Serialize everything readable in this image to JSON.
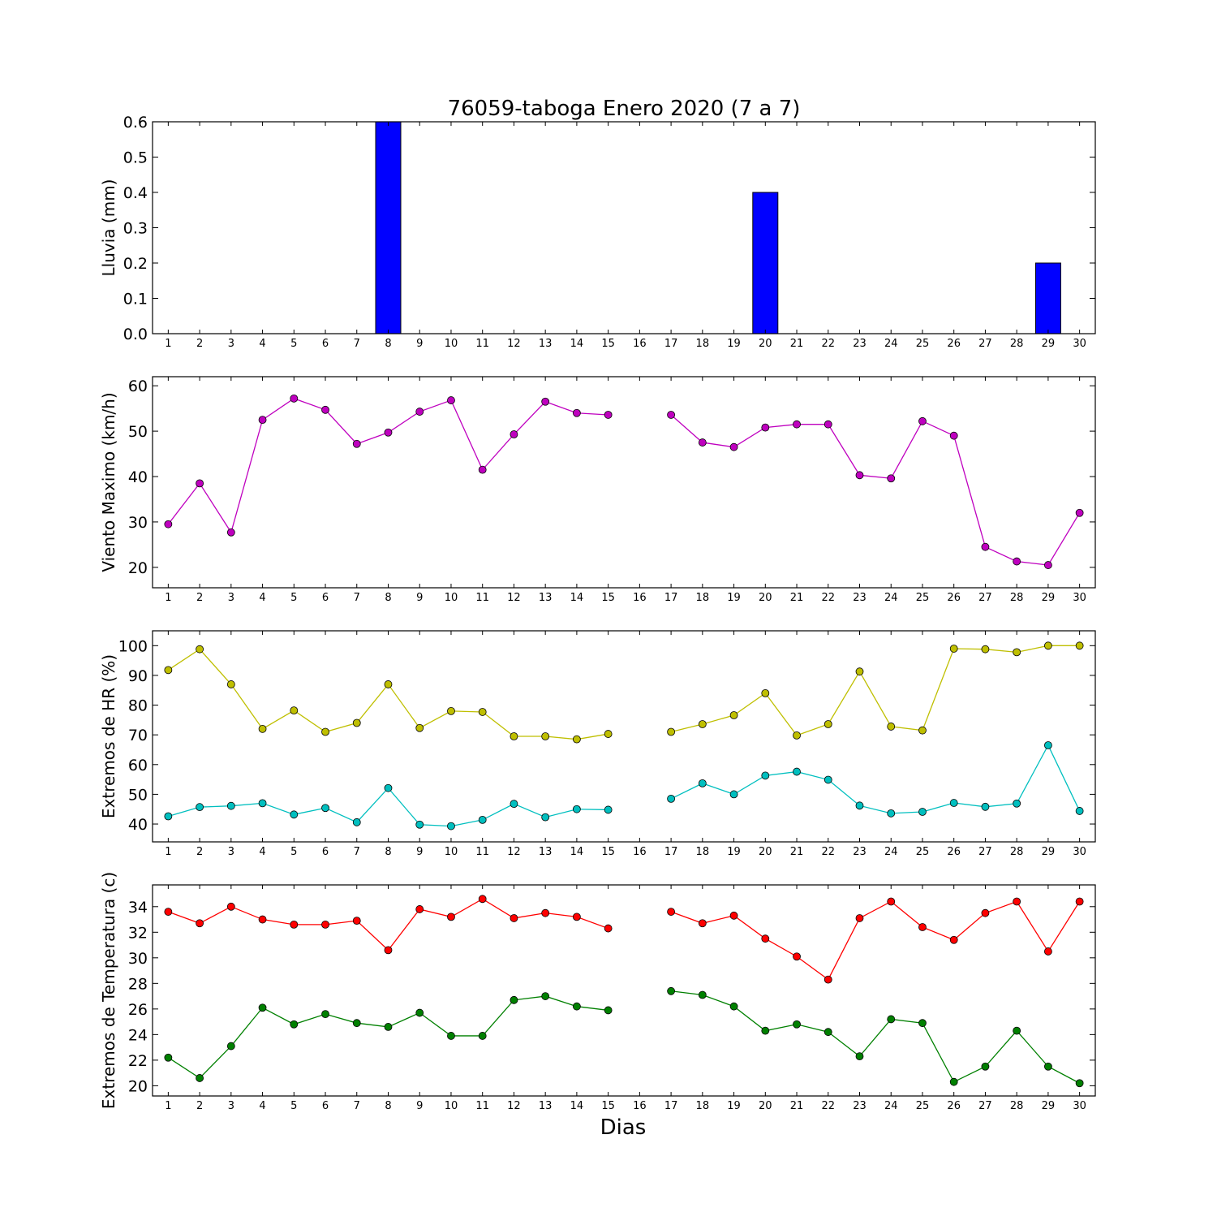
{
  "chart_data": [
    {
      "type": "bar",
      "title": "76059-taboga Enero 2020  (7 a 7)",
      "ylabel": "Lluvia (mm)",
      "xlabel": "",
      "x": [
        1,
        2,
        3,
        4,
        5,
        6,
        7,
        8,
        9,
        10,
        11,
        12,
        13,
        14,
        15,
        16,
        17,
        18,
        19,
        20,
        21,
        22,
        23,
        24,
        25,
        26,
        27,
        28,
        29,
        30
      ],
      "values": [
        0,
        0,
        0,
        0,
        0,
        0,
        0,
        0.6,
        0,
        0,
        0,
        0,
        0,
        0,
        0,
        0,
        0,
        0,
        0,
        0.4,
        0,
        0,
        0,
        0,
        0,
        0,
        0,
        0,
        0.2,
        0
      ],
      "ylim": [
        0,
        0.6
      ],
      "yticks": [
        "0.0",
        "0.1",
        "0.2",
        "0.3",
        "0.4",
        "0.5",
        "0.6"
      ],
      "color": "#0000ff"
    },
    {
      "type": "line",
      "ylabel": "Viento Maximo (km/h)",
      "x": [
        1,
        2,
        3,
        4,
        5,
        6,
        7,
        8,
        9,
        10,
        11,
        12,
        13,
        14,
        15,
        16,
        17,
        18,
        19,
        20,
        21,
        22,
        23,
        24,
        25,
        26,
        27,
        28,
        29,
        30
      ],
      "series": [
        {
          "color": "#bf00bf",
          "values": [
            29.5,
            38.5,
            27.7,
            52.5,
            57.2,
            54.7,
            47.2,
            49.7,
            54.3,
            56.8,
            41.5,
            49.3,
            56.5,
            54.0,
            53.6,
            null,
            53.6,
            47.5,
            46.5,
            50.8,
            51.5,
            51.5,
            40.3,
            39.6,
            52.2,
            49.0,
            24.5,
            21.3,
            20.5,
            32.0
          ]
        }
      ],
      "ylim": [
        15.5,
        62
      ],
      "yticks": [
        "20",
        "30",
        "40",
        "50",
        "60"
      ]
    },
    {
      "type": "line",
      "ylabel": "Extremos de HR (%)",
      "x": [
        1,
        2,
        3,
        4,
        5,
        6,
        7,
        8,
        9,
        10,
        11,
        12,
        13,
        14,
        15,
        16,
        17,
        18,
        19,
        20,
        21,
        22,
        23,
        24,
        25,
        26,
        27,
        28,
        29,
        30
      ],
      "series": [
        {
          "color": "#bfbf00",
          "values": [
            91.8,
            98.8,
            87.0,
            72.0,
            78.2,
            71.0,
            74.0,
            87.0,
            72.3,
            78.0,
            77.7,
            69.5,
            69.5,
            68.5,
            70.3,
            null,
            71.0,
            73.6,
            76.6,
            84.0,
            69.8,
            73.6,
            91.3,
            72.8,
            71.5,
            99.0,
            98.8,
            97.8,
            100.0,
            100.0
          ]
        },
        {
          "color": "#00bfbf",
          "values": [
            42.6,
            45.7,
            46.1,
            47.0,
            43.2,
            45.4,
            40.6,
            52.1,
            39.8,
            39.3,
            41.4,
            46.8,
            42.3,
            45.0,
            44.8,
            null,
            48.5,
            53.7,
            50.0,
            56.3,
            57.6,
            54.9,
            46.2,
            43.6,
            44.1,
            47.1,
            45.8,
            46.9,
            66.5,
            44.4
          ]
        }
      ],
      "ylim": [
        34,
        105
      ],
      "yticks": [
        "40",
        "50",
        "60",
        "70",
        "80",
        "90",
        "100"
      ]
    },
    {
      "type": "line",
      "ylabel": "Extremos de Temperatura (c)",
      "xlabel": "Dias",
      "x": [
        1,
        2,
        3,
        4,
        5,
        6,
        7,
        8,
        9,
        10,
        11,
        12,
        13,
        14,
        15,
        16,
        17,
        18,
        19,
        20,
        21,
        22,
        23,
        24,
        25,
        26,
        27,
        28,
        29,
        30
      ],
      "series": [
        {
          "color": "#ff0000",
          "values": [
            33.6,
            32.7,
            34.0,
            33.0,
            32.6,
            32.6,
            32.9,
            30.6,
            33.8,
            33.2,
            34.6,
            33.1,
            33.5,
            33.2,
            32.3,
            null,
            33.6,
            32.7,
            33.3,
            31.5,
            30.1,
            28.3,
            33.1,
            34.4,
            32.4,
            31.4,
            33.5,
            34.4,
            30.5,
            34.4
          ]
        },
        {
          "color": "#008000",
          "values": [
            22.2,
            20.6,
            23.1,
            26.1,
            24.8,
            25.6,
            24.9,
            24.6,
            25.7,
            23.9,
            23.9,
            26.7,
            27.0,
            26.2,
            25.9,
            null,
            27.4,
            27.1,
            26.2,
            24.3,
            24.8,
            24.2,
            22.3,
            25.2,
            24.9,
            20.3,
            21.5,
            24.3,
            21.5,
            20.2
          ]
        }
      ],
      "ylim": [
        19.2,
        35.7
      ],
      "yticks": [
        "20",
        "22",
        "24",
        "26",
        "28",
        "30",
        "32",
        "34"
      ]
    }
  ]
}
